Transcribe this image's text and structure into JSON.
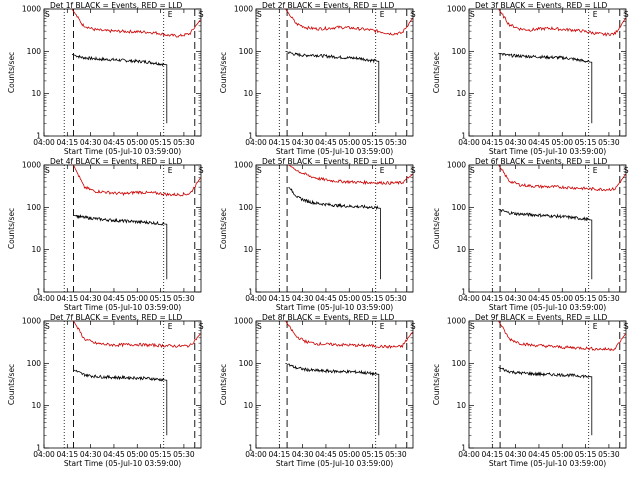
{
  "chart_data": [
    {
      "type": "line",
      "title": "Det 1f BLACK = Events, RED = LLD",
      "ylabel": "Counts/sec",
      "xlabel": "Start Time (05-Jul-10 03:59:00)",
      "x_ticks": [
        "04:00",
        "04:15",
        "04:30",
        "04:45",
        "05:00",
        "05:15",
        "05:30"
      ],
      "y_ticks": [
        "1",
        "10",
        "100",
        "1000"
      ],
      "y_scale": "log",
      "ylim": [
        1,
        1000
      ],
      "events_start": "04:18",
      "events_end": "05:19",
      "series": [
        {
          "name": "BLACK = Events",
          "color": "#000000",
          "values": [
            85,
            72,
            68,
            65,
            64,
            62,
            60,
            58,
            56,
            52,
            48
          ]
        },
        {
          "name": "RED = LLD",
          "color": "#cc0000",
          "values": [
            1000,
            420,
            330,
            305,
            300,
            295,
            290,
            285,
            270,
            240,
            230,
            260,
            560
          ]
        }
      ],
      "markers": [
        {
          "label": "S",
          "x": "04:00"
        },
        {
          "label": "E",
          "x": "05:19"
        },
        {
          "label": "S",
          "x": "05:39"
        }
      ],
      "lines": {
        "dotted": [
          "04:13",
          "05:17"
        ],
        "dashed": [
          "04:19",
          "05:37"
        ]
      }
    },
    {
      "type": "line",
      "title": "Det 2f BLACK = Events, RED = LLD",
      "ylabel": "Counts/sec",
      "xlabel": "Start Time (05-Jul-10 03:59:00)",
      "x_ticks": [
        "04:00",
        "04:15",
        "04:30",
        "04:45",
        "05:00",
        "05:15",
        "05:30"
      ],
      "y_ticks": [
        "1",
        "10",
        "100",
        "1000"
      ],
      "y_scale": "log",
      "ylim": [
        1,
        1000
      ],
      "events_start": "04:19",
      "events_end": "05:19",
      "series": [
        {
          "name": "BLACK = Events",
          "color": "#000000",
          "values": [
            100,
            85,
            80,
            82,
            78,
            75,
            72,
            70,
            68,
            62,
            58
          ]
        },
        {
          "name": "RED = LLD",
          "color": "#cc0000",
          "values": [
            1000,
            450,
            360,
            340,
            350,
            370,
            360,
            340,
            320,
            290,
            260,
            270,
            600
          ]
        }
      ],
      "markers": [
        {
          "label": "S",
          "x": "04:00"
        },
        {
          "label": "E",
          "x": "05:19"
        },
        {
          "label": "S",
          "x": "05:39"
        }
      ],
      "lines": {
        "dotted": [
          "04:15",
          "05:17"
        ],
        "dashed": [
          "04:20",
          "05:37"
        ]
      }
    },
    {
      "type": "line",
      "title": "Det 3f BLACK = Events, RED = LLD",
      "ylabel": "Counts/sec",
      "xlabel": "Start Time (05-Jul-10 03:59:00)",
      "x_ticks": [
        "04:00",
        "04:15",
        "04:30",
        "04:45",
        "05:00",
        "05:15",
        "05:30"
      ],
      "y_ticks": [
        "1",
        "10",
        "100",
        "1000"
      ],
      "y_scale": "log",
      "ylim": [
        1,
        1000
      ],
      "events_start": "04:19",
      "events_end": "05:19",
      "series": [
        {
          "name": "BLACK = Events",
          "color": "#000000",
          "values": [
            90,
            80,
            78,
            76,
            75,
            73,
            72,
            70,
            66,
            60,
            55
          ]
        },
        {
          "name": "RED = LLD",
          "color": "#cc0000",
          "values": [
            1000,
            430,
            340,
            320,
            340,
            350,
            330,
            320,
            300,
            270,
            250,
            260,
            600
          ]
        }
      ],
      "markers": [
        {
          "label": "S",
          "x": "04:00"
        },
        {
          "label": "E",
          "x": "05:19"
        },
        {
          "label": "S",
          "x": "05:39"
        }
      ],
      "lines": {
        "dotted": [
          "04:15",
          "05:17"
        ],
        "dashed": [
          "04:20",
          "05:37"
        ]
      }
    },
    {
      "type": "line",
      "title": "Det 4f BLACK = Events, RED = LLD",
      "ylabel": "Counts/sec",
      "xlabel": "Start Time (05-Jul-10 03:59:00)",
      "x_ticks": [
        "04:00",
        "04:15",
        "04:30",
        "04:45",
        "05:00",
        "05:15",
        "05:30"
      ],
      "y_ticks": [
        "1",
        "10",
        "100",
        "1000"
      ],
      "y_scale": "log",
      "ylim": [
        1,
        1000
      ],
      "events_start": "04:19",
      "events_end": "05:19",
      "series": [
        {
          "name": "BLACK = Events",
          "color": "#000000",
          "values": [
            65,
            58,
            55,
            52,
            50,
            48,
            47,
            45,
            44,
            42,
            40
          ]
        },
        {
          "name": "RED = LLD",
          "color": "#cc0000",
          "values": [
            1000,
            300,
            240,
            230,
            215,
            210,
            230,
            220,
            215,
            200,
            200,
            210,
            500
          ]
        }
      ],
      "markers": [
        {
          "label": "S",
          "x": "04:00"
        },
        {
          "label": "E",
          "x": "05:19"
        },
        {
          "label": "S",
          "x": "05:39"
        }
      ],
      "lines": {
        "dotted": [
          "04:13",
          "05:17"
        ],
        "dashed": [
          "04:19",
          "05:37"
        ]
      }
    },
    {
      "type": "line",
      "title": "Det 5f BLACK = Events, RED = LLD",
      "ylabel": "Counts/sec",
      "xlabel": "Start Time (05-Jul-10 03:59:00)",
      "x_ticks": [
        "04:00",
        "04:15",
        "04:30",
        "04:45",
        "05:00",
        "05:15",
        "05:30"
      ],
      "y_ticks": [
        "1",
        "10",
        "100",
        "1000"
      ],
      "y_scale": "log",
      "ylim": [
        1,
        1000
      ],
      "events_start": "04:21",
      "events_end": "05:20",
      "series": [
        {
          "name": "BLACK = Events",
          "color": "#000000",
          "values": [
            300,
            170,
            140,
            125,
            118,
            112,
            108,
            105,
            103,
            100,
            95
          ]
        },
        {
          "name": "RED = LLD",
          "color": "#cc0000",
          "values": [
            1000,
            700,
            550,
            470,
            430,
            410,
            400,
            390,
            385,
            380,
            375,
            380,
            600
          ]
        }
      ],
      "markers": [
        {
          "label": "S",
          "x": "04:00"
        },
        {
          "label": "E",
          "x": "05:19"
        },
        {
          "label": "S",
          "x": "05:39"
        }
      ],
      "lines": {
        "dotted": [
          "04:15",
          "05:17"
        ],
        "dashed": [
          "04:20",
          "05:37"
        ]
      }
    },
    {
      "type": "line",
      "title": "Det 6f BLACK = Events, RED = LLD",
      "ylabel": "Counts/sec",
      "xlabel": "Start Time (05-Jul-10 03:59:00)",
      "x_ticks": [
        "04:00",
        "04:15",
        "04:30",
        "04:45",
        "05:00",
        "05:15",
        "05:30"
      ],
      "y_ticks": [
        "1",
        "10",
        "100",
        "1000"
      ],
      "y_scale": "log",
      "ylim": [
        1,
        1000
      ],
      "events_start": "04:19",
      "events_end": "05:19",
      "series": [
        {
          "name": "BLACK = Events",
          "color": "#000000",
          "values": [
            90,
            75,
            70,
            68,
            66,
            64,
            62,
            60,
            57,
            54,
            50
          ]
        },
        {
          "name": "RED = LLD",
          "color": "#cc0000",
          "values": [
            1000,
            420,
            340,
            320,
            310,
            305,
            300,
            290,
            280,
            270,
            265,
            270,
            600
          ]
        }
      ],
      "markers": [
        {
          "label": "S",
          "x": "04:00"
        },
        {
          "label": "E",
          "x": "05:19"
        },
        {
          "label": "S",
          "x": "05:39"
        }
      ],
      "lines": {
        "dotted": [
          "04:15",
          "05:17"
        ],
        "dashed": [
          "04:20",
          "05:37"
        ]
      }
    },
    {
      "type": "line",
      "title": "Det 7f BLACK = Events, RED = LLD",
      "ylabel": "Counts/sec",
      "xlabel": "Start Time (05-Jul-10 03:59:00)",
      "x_ticks": [
        "04:00",
        "04:15",
        "04:30",
        "04:45",
        "05:00",
        "05:15",
        "05:30"
      ],
      "y_ticks": [
        "1",
        "10",
        "100",
        "1000"
      ],
      "y_scale": "log",
      "ylim": [
        1,
        1000
      ],
      "events_start": "04:19",
      "events_end": "05:19",
      "series": [
        {
          "name": "BLACK = Events",
          "color": "#000000",
          "values": [
            70,
            55,
            50,
            48,
            47,
            46,
            46,
            45,
            44,
            42,
            40
          ]
        },
        {
          "name": "RED = LLD",
          "color": "#cc0000",
          "values": [
            1000,
            380,
            300,
            280,
            270,
            275,
            280,
            270,
            265,
            260,
            255,
            260,
            500
          ]
        }
      ],
      "markers": [
        {
          "label": "S",
          "x": "04:00"
        },
        {
          "label": "E",
          "x": "05:19"
        },
        {
          "label": "S",
          "x": "05:39"
        }
      ],
      "lines": {
        "dotted": [
          "04:13",
          "05:17"
        ],
        "dashed": [
          "04:19",
          "05:37"
        ]
      }
    },
    {
      "type": "line",
      "title": "Det 8f BLACK = Events, RED = LLD",
      "ylabel": "Counts/sec",
      "xlabel": "Start Time (05-Jul-10 03:59:00)",
      "x_ticks": [
        "04:00",
        "04:15",
        "04:30",
        "04:45",
        "05:00",
        "05:15",
        "05:30"
      ],
      "y_ticks": [
        "1",
        "10",
        "100",
        "1000"
      ],
      "y_scale": "log",
      "ylim": [
        1,
        1000
      ],
      "events_start": "04:19",
      "events_end": "05:19",
      "series": [
        {
          "name": "BLACK = Events",
          "color": "#000000",
          "values": [
            100,
            80,
            72,
            68,
            66,
            65,
            64,
            63,
            62,
            58,
            55
          ]
        },
        {
          "name": "RED = LLD",
          "color": "#cc0000",
          "values": [
            1000,
            430,
            320,
            290,
            280,
            275,
            270,
            265,
            260,
            250,
            245,
            250,
            550
          ]
        }
      ],
      "markers": [
        {
          "label": "S",
          "x": "04:00"
        },
        {
          "label": "E",
          "x": "05:19"
        },
        {
          "label": "S",
          "x": "05:39"
        }
      ],
      "lines": {
        "dotted": [
          "04:15",
          "05:17"
        ],
        "dashed": [
          "04:20",
          "05:37"
        ]
      }
    },
    {
      "type": "line",
      "title": "Det 9f BLACK = Events, RED = LLD",
      "ylabel": "Counts/sec",
      "xlabel": "Start Time (05-Jul-10 03:59:00)",
      "x_ticks": [
        "04:00",
        "04:15",
        "04:30",
        "04:45",
        "05:00",
        "05:15",
        "05:30"
      ],
      "y_ticks": [
        "1",
        "10",
        "100",
        "1000"
      ],
      "y_scale": "log",
      "ylim": [
        1,
        1000
      ],
      "events_start": "04:19",
      "events_end": "05:19",
      "series": [
        {
          "name": "BLACK = Events",
          "color": "#000000",
          "values": [
            80,
            65,
            60,
            58,
            56,
            55,
            54,
            53,
            52,
            50,
            48
          ]
        },
        {
          "name": "RED = LLD",
          "color": "#cc0000",
          "values": [
            1000,
            380,
            300,
            270,
            260,
            250,
            240,
            235,
            230,
            220,
            215,
            220,
            500
          ]
        }
      ],
      "markers": [
        {
          "label": "S",
          "x": "04:00"
        },
        {
          "label": "E",
          "x": "05:19"
        },
        {
          "label": "S",
          "x": "05:39"
        }
      ],
      "lines": {
        "dotted": [
          "04:15",
          "05:17"
        ],
        "dashed": [
          "04:20",
          "05:37"
        ]
      }
    }
  ]
}
